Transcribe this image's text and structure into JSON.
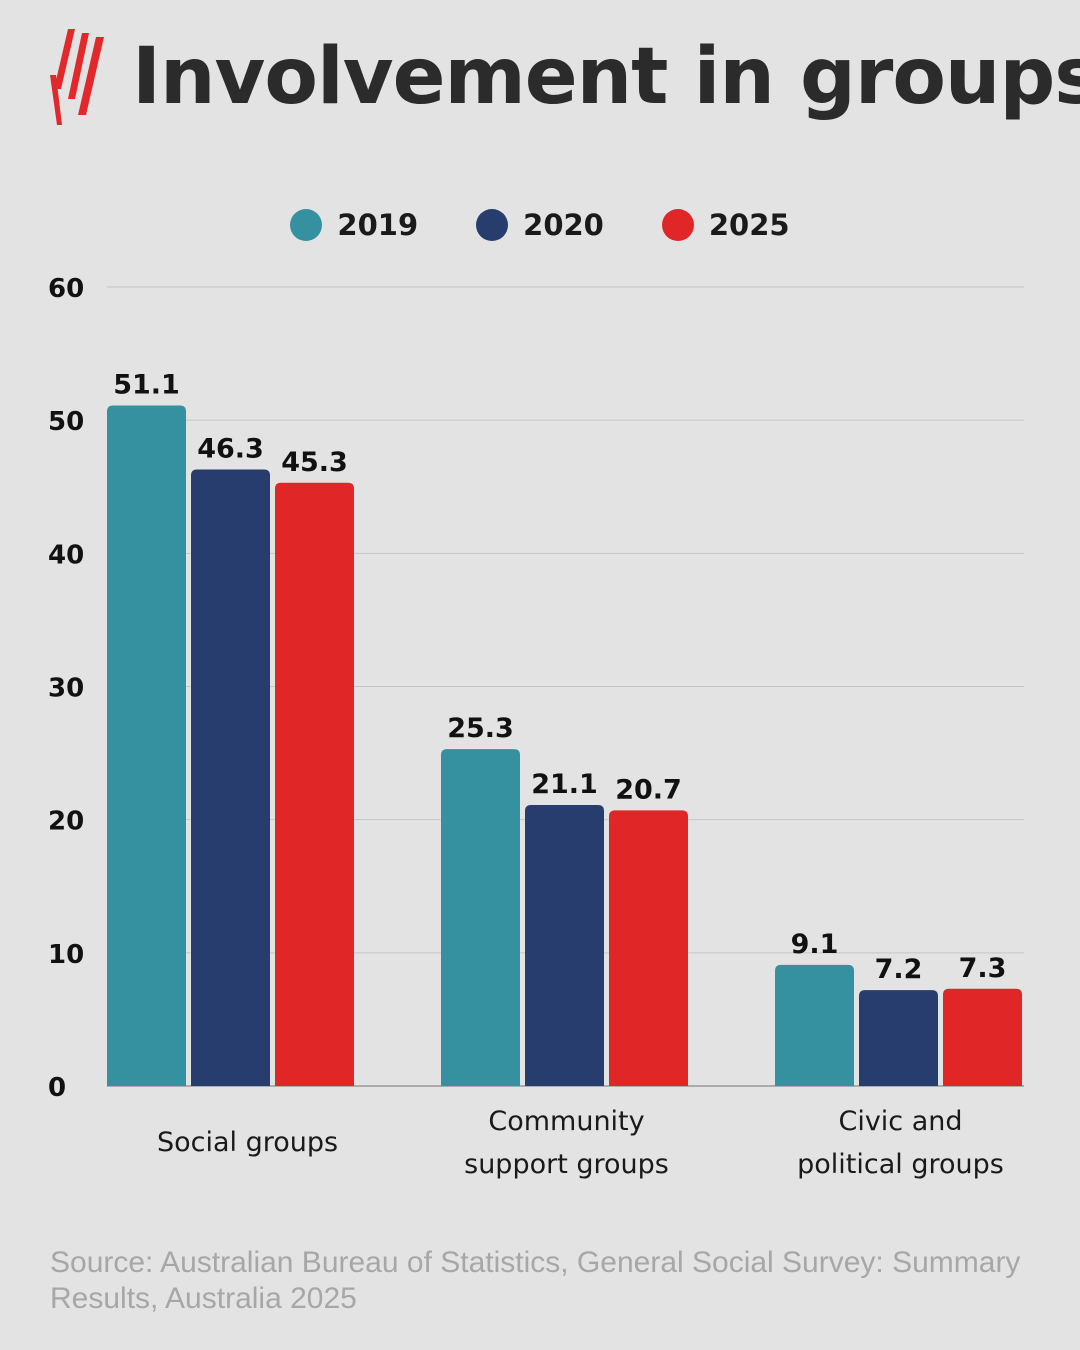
{
  "header": {
    "title": "Involvement in groups",
    "logo_icon": "sbs-stripes-logo-icon",
    "logo_color": "#e2282a"
  },
  "legend": {
    "items": [
      {
        "label": "2019",
        "color": "#3590a0"
      },
      {
        "label": "2020",
        "color": "#263d6e"
      },
      {
        "label": "2025",
        "color": "#e12628"
      }
    ]
  },
  "chart_data": {
    "type": "bar",
    "title": "Involvement in groups",
    "xlabel": "",
    "ylabel": "",
    "ylim": [
      0,
      60
    ],
    "yticks": [
      "0",
      "10",
      "20",
      "30",
      "40",
      "50",
      "60"
    ],
    "grid": true,
    "legend_position": "top-center",
    "categories": [
      [
        "Social groups"
      ],
      [
        "Community",
        "support groups"
      ],
      [
        "Civic and",
        "political groups"
      ]
    ],
    "series": [
      {
        "name": "2019",
        "color": "#3590a0",
        "values": [
          51.1,
          25.3,
          9.1
        ]
      },
      {
        "name": "2020",
        "color": "#263d6e",
        "values": [
          46.3,
          21.1,
          7.2
        ]
      },
      {
        "name": "2025",
        "color": "#e12628",
        "values": [
          45.3,
          20.7,
          7.3
        ]
      }
    ]
  },
  "footer": {
    "source": "Source: Australian Bureau of Statistics, General Social Survey: Summary Results, Australia 2025"
  }
}
